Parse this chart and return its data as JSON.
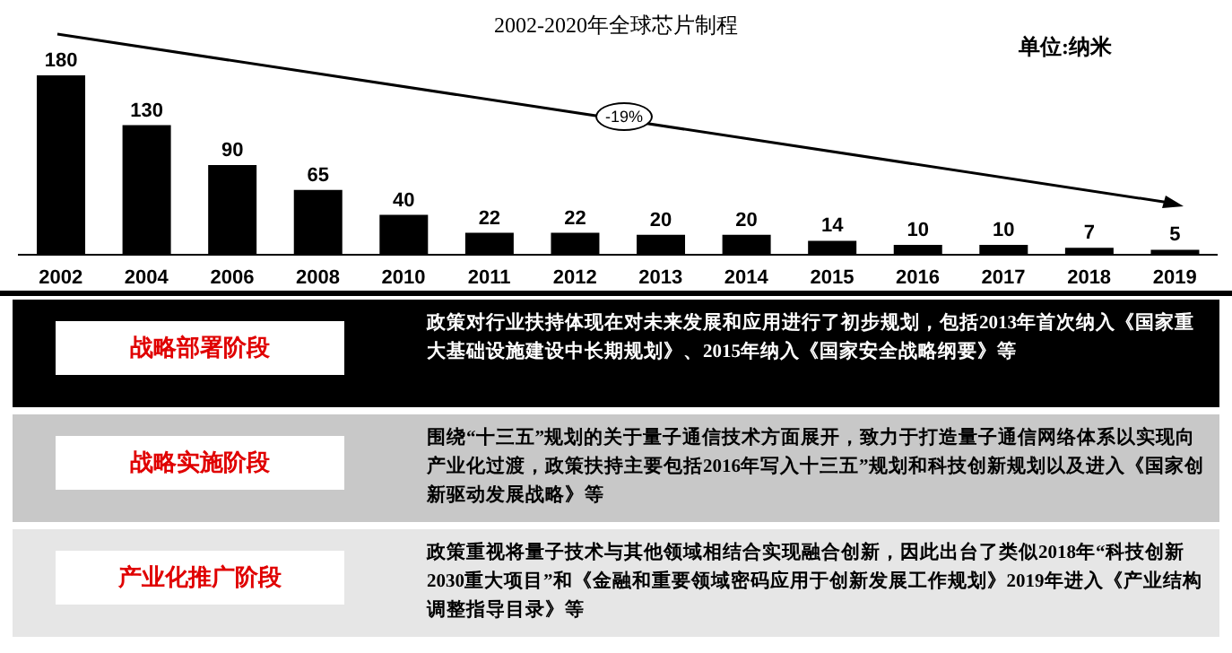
{
  "chart_data": {
    "type": "bar",
    "title": "2002-2020年全球芯片制程",
    "categories": [
      "2002",
      "2004",
      "2006",
      "2008",
      "2010",
      "2011",
      "2012",
      "2013",
      "2014",
      "2015",
      "2016",
      "2017",
      "2018",
      "2019"
    ],
    "values": [
      180,
      130,
      90,
      65,
      40,
      22,
      22,
      20,
      20,
      14,
      10,
      10,
      7,
      5
    ],
    "color": "#000000",
    "data_labels": true,
    "annotations": [
      "-19%",
      "单位:纳米",
      "战略部署阶段",
      "政策对行业扶持体现在对未来发展和应用进行了初步规划，包括2013年首次纳入《国家重大基础设施建设中长期规划》、2015年纳入《国家安全战略纲要》等",
      "战略实施阶段",
      "围绕“十三五”规划的关于量子通信技术方面展开，致力于打造量子通信网络体系以实现向产业化过渡，政策扶持主要包括2016年写入十三五”规划和科技创新规划以及进入《国家创新驱动发展战略》等",
      "产业化推广阶段",
      "政策重视将量子技术与其他领域相结合实现融合创新，因此出台了类似2018年“科技创新 2030重大项目”和《金融和重要领域密码应用于创新发展工作规划》2019年进入《产业结构调整指导目录》等"
    ]
  }
}
